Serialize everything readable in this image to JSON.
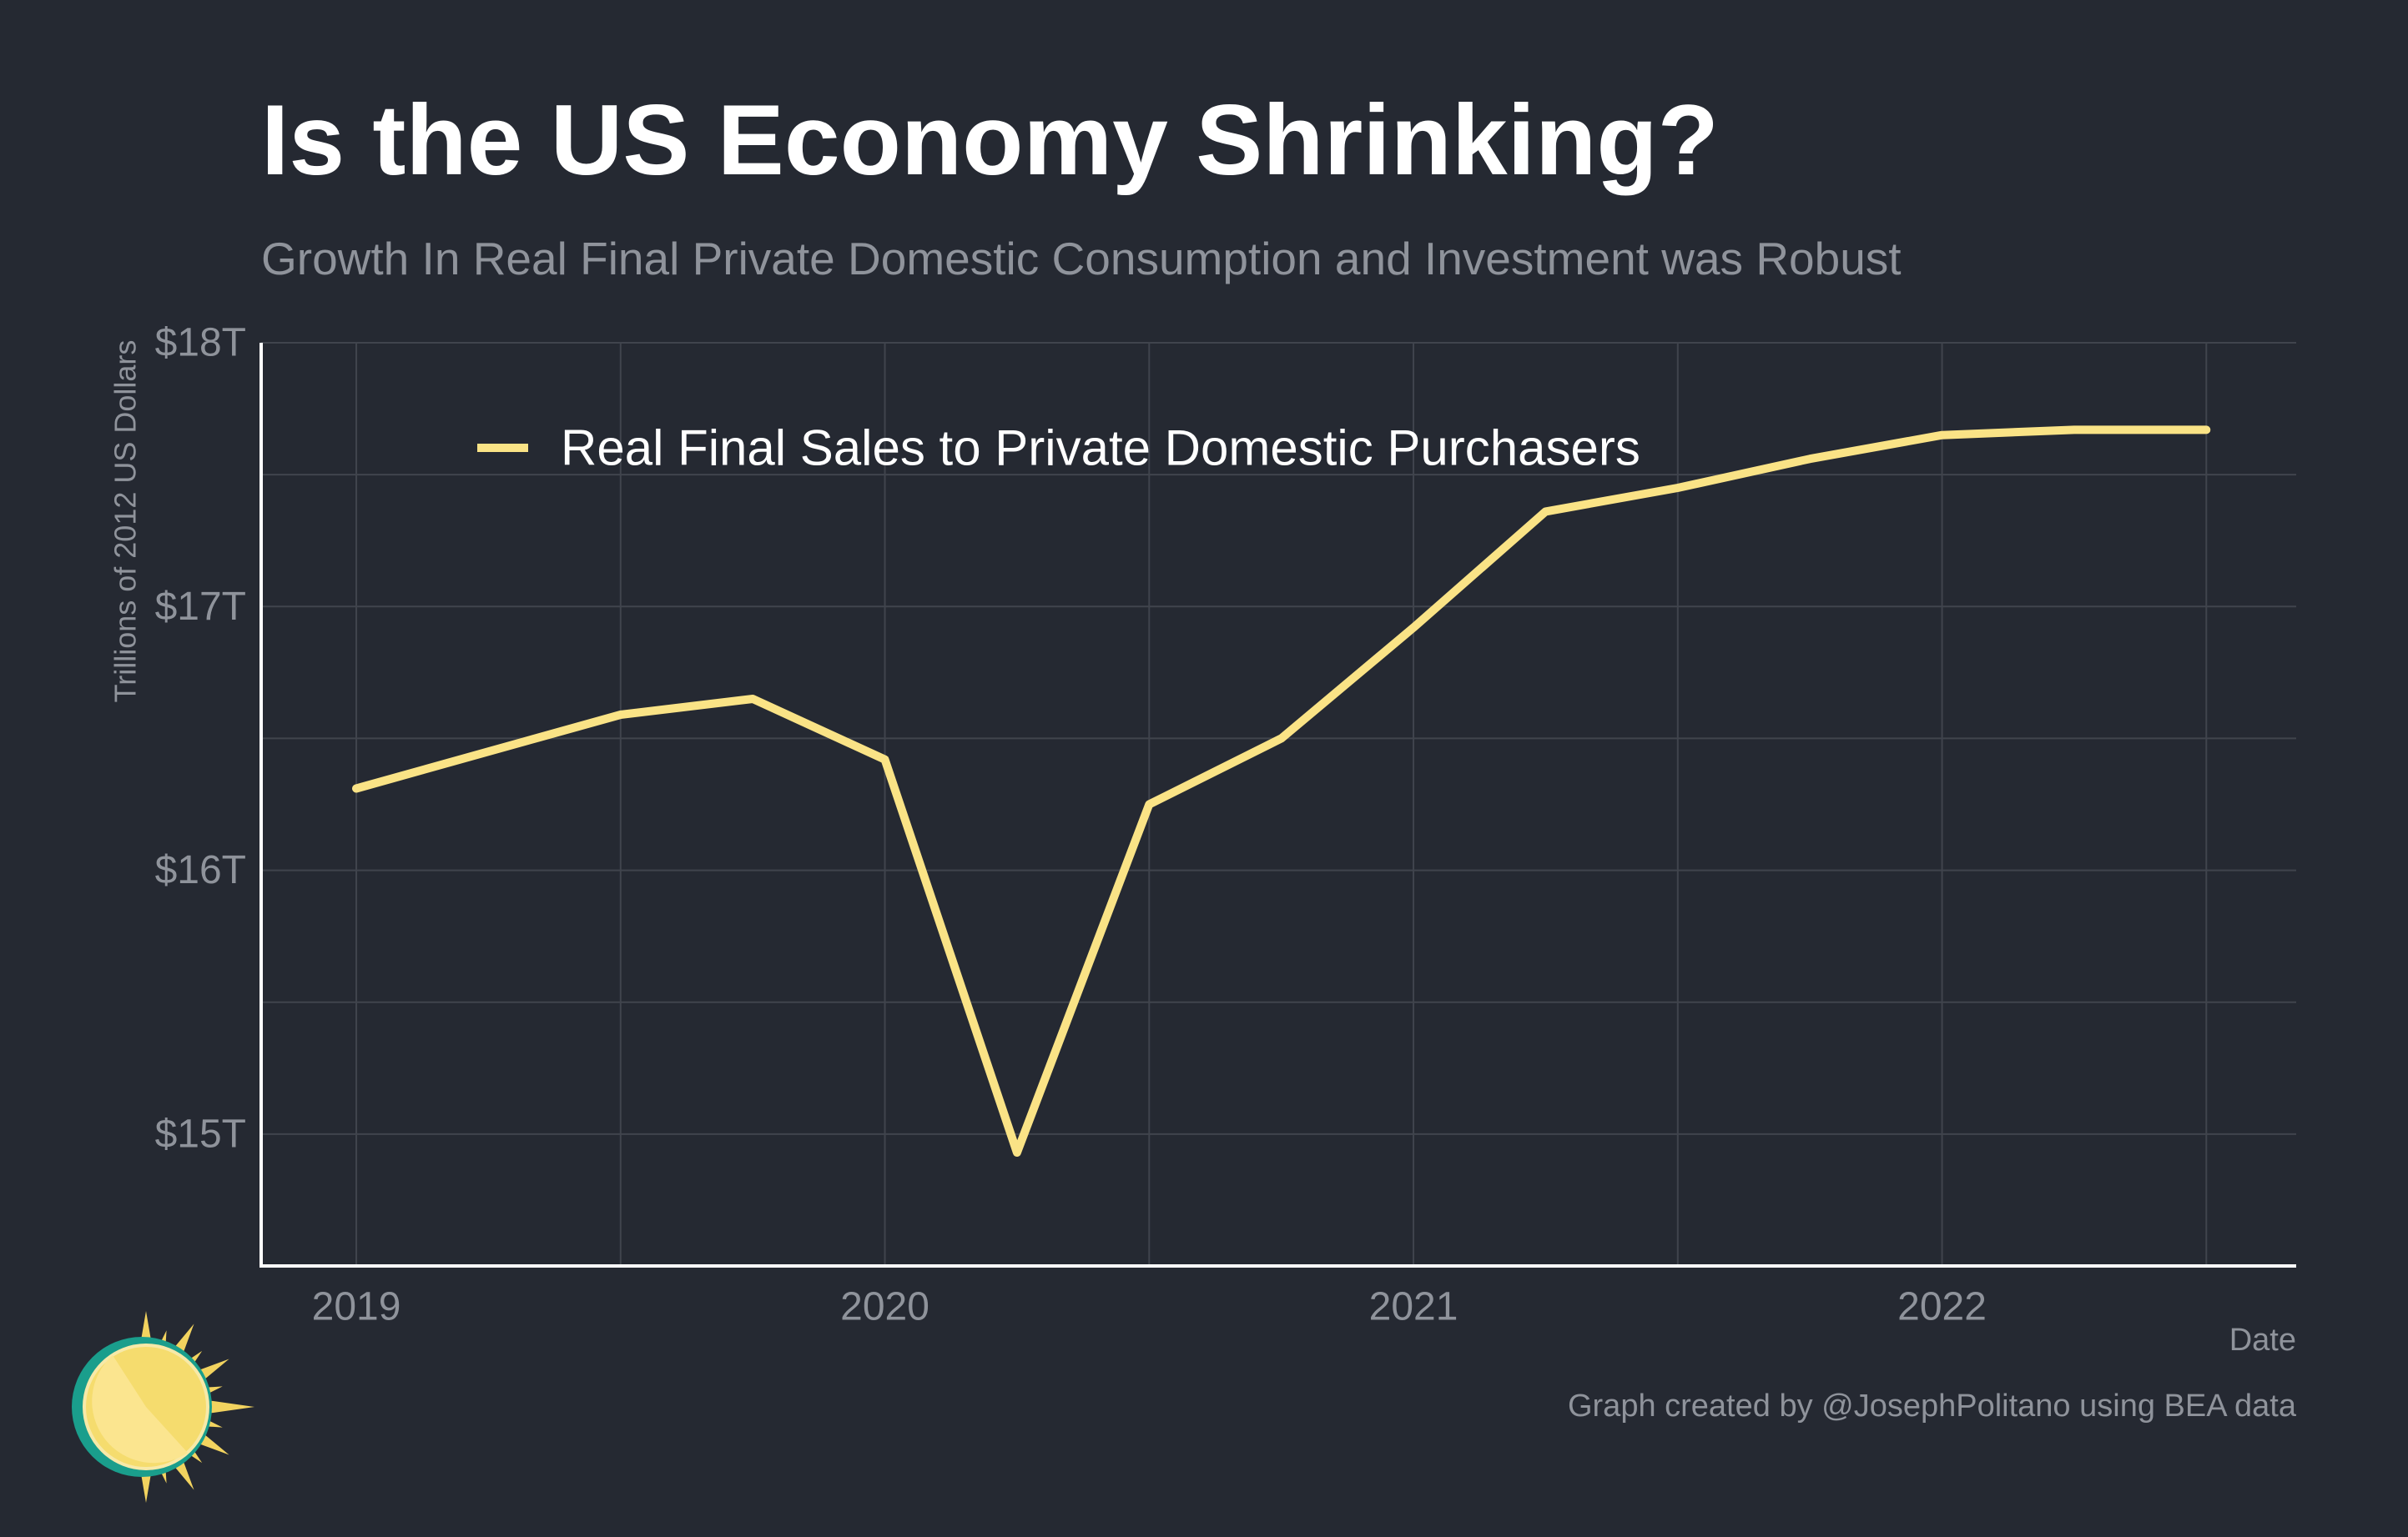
{
  "header": {
    "title": "Is the US Economy Shrinking?",
    "subtitle": "Growth In Real Final Private Domestic Consumption and Investment was Robust"
  },
  "footer": {
    "credit": "Graph created by @JosephPolitano using BEA data",
    "logo_icon": "sun-logo-icon"
  },
  "colors": {
    "background": "#252932",
    "series": "#fae386",
    "grid": "#40444d",
    "axis": "#ffffff",
    "muted_text": "#8f939b"
  },
  "chart_data": {
    "type": "line",
    "title": "Is the US Economy Shrinking?",
    "subtitle": "Growth In Real Final Private Domestic Consumption and Investment was Robust",
    "xlabel": "Date",
    "ylabel": "Trillions of 2012 US Dollars",
    "x_ticks": [
      2019,
      2020,
      2021,
      2022
    ],
    "x_tick_labels": [
      "2019",
      "2020",
      "2021",
      "2022"
    ],
    "xlim": [
      2018.82,
      2022.67
    ],
    "y_ticks": [
      15,
      16,
      17,
      18
    ],
    "y_tick_labels": [
      "$15T",
      "$16T",
      "$17T",
      "$18T"
    ],
    "ylim": [
      14.5,
      18
    ],
    "grid": true,
    "legend_position": "top-left",
    "series": [
      {
        "name": "Real Final Sales to Private Domestic Purchasers",
        "color": "#fae386",
        "x": [
          2019.0,
          2019.25,
          2019.5,
          2019.75,
          2020.0,
          2020.25,
          2020.5,
          2020.75,
          2021.0,
          2021.25,
          2021.5,
          2021.75,
          2022.0,
          2022.25,
          2022.5
        ],
        "y": [
          16.31,
          16.45,
          16.59,
          16.65,
          16.42,
          14.93,
          16.25,
          16.5,
          16.92,
          17.36,
          17.45,
          17.56,
          17.65,
          17.67,
          17.67
        ]
      }
    ]
  }
}
